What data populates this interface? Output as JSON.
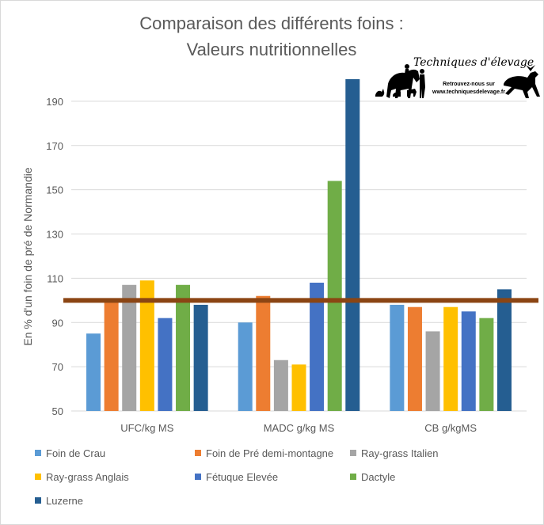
{
  "chart_data": {
    "type": "bar",
    "title": [
      "Comparaison des différents foins :",
      "Valeurs nutritionnelles"
    ],
    "ylabel": "En % d'un foin de pré de Normandie",
    "xlabel": "",
    "ylim": [
      50,
      200
    ],
    "yticks": [
      50,
      70,
      90,
      110,
      130,
      150,
      170,
      190
    ],
    "grid": true,
    "legend_position": "bottom",
    "reference_line": {
      "value": 100,
      "color": "#8b4513"
    },
    "categories": [
      "UFC/kg MS",
      "MADC g/kg MS",
      "CB g/kgMS"
    ],
    "series": [
      {
        "name": "Foin de Crau",
        "color": "#5b9bd5",
        "values": [
          85,
          90,
          98
        ]
      },
      {
        "name": "Foin de Pré demi-montagne",
        "color": "#ed7d31",
        "values": [
          100,
          102,
          97
        ]
      },
      {
        "name": "Ray-grass Italien",
        "color": "#a5a5a5",
        "values": [
          107,
          73,
          86
        ]
      },
      {
        "name": "Ray-grass Anglais",
        "color": "#ffc000",
        "values": [
          109,
          71,
          97
        ]
      },
      {
        "name": "Fétuque Elevée",
        "color": "#4472c4",
        "values": [
          92,
          108,
          95
        ]
      },
      {
        "name": "Dactyle",
        "color": "#70ad47",
        "values": [
          107,
          154,
          92
        ]
      },
      {
        "name": "Luzerne",
        "color": "#255e91",
        "values": [
          98,
          200,
          105
        ]
      }
    ]
  },
  "logo": {
    "title": "Techniques d'élevage",
    "line1": "Retrouvez-nous sur",
    "line2": "www.techniquesdelevage.fr"
  }
}
